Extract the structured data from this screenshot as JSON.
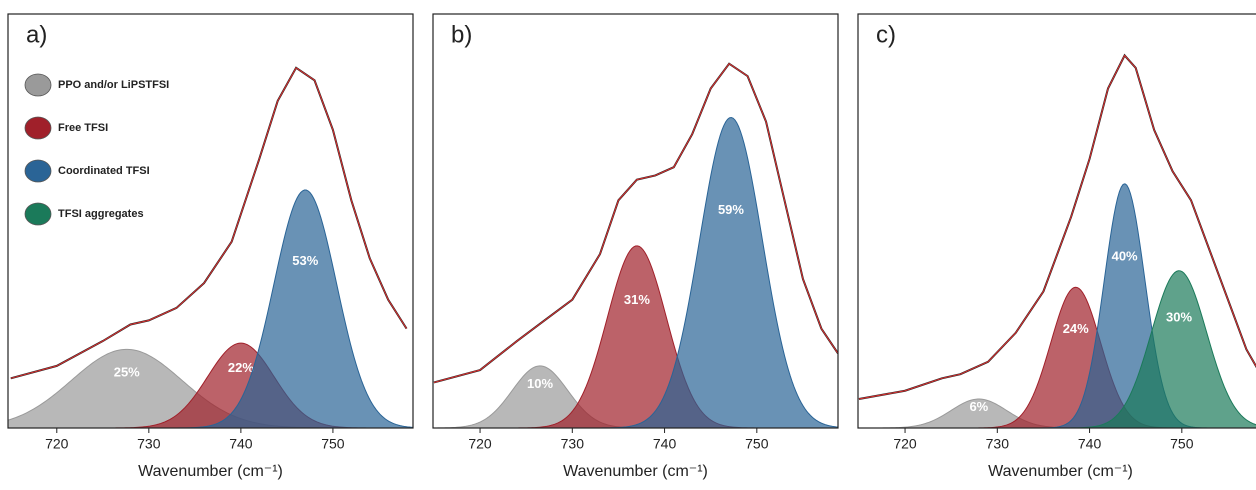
{
  "chart_data": [
    {
      "type": "area",
      "panel_label": "a)",
      "x_label": "Wavenumber (cm⁻¹)",
      "xlim": [
        714.7,
        758.7
      ],
      "xticks": [
        720,
        730,
        740,
        750
      ],
      "ylim": [
        0,
        1
      ],
      "legend": "upper left",
      "series": [
        {
          "name": "PPO and/or LiPSTFSI",
          "color": "#9a9a9a",
          "center": 727.6,
          "width": 6,
          "height": 0.19
        },
        {
          "name": "Free TFSI",
          "color": "#a0202a",
          "center": 740,
          "width": 3.6,
          "height": 0.205
        },
        {
          "name": "Coordinated TFSI",
          "color": "#2a6496",
          "center": 747,
          "width": 3.4,
          "height": 0.575
        },
        {
          "name": "TFSI aggregates",
          "color": "#1b7a5a"
        }
      ],
      "values": [
        25,
        22,
        53
      ],
      "value_labels": [
        "25%",
        "22%",
        "53%"
      ],
      "spectrum": {
        "color": "#e03030",
        "x": [
          715,
          720,
          725,
          728,
          730,
          733,
          736,
          739,
          742,
          744,
          746,
          748,
          750,
          752,
          754,
          756,
          758
        ],
        "values": [
          0.12,
          0.15,
          0.21,
          0.25,
          0.26,
          0.29,
          0.35,
          0.45,
          0.65,
          0.79,
          0.87,
          0.84,
          0.72,
          0.55,
          0.41,
          0.31,
          0.24
        ]
      }
    },
    {
      "type": "area",
      "panel_label": "b)",
      "x_label": "Wavenumber (cm⁻¹)",
      "xlim": [
        714.9,
        758.8
      ],
      "xticks": [
        720,
        730,
        740,
        750
      ],
      "ylim": [
        0,
        1
      ],
      "series": [
        {
          "color": "#9a9a9a",
          "center": 726.5,
          "width": 3,
          "height": 0.15
        },
        {
          "color": "#a0202a",
          "center": 737,
          "width": 3.2,
          "height": 0.44
        },
        {
          "color": "#2a6496",
          "center": 747.2,
          "width": 3.4,
          "height": 0.75
        }
      ],
      "values": [
        10,
        31,
        59
      ],
      "value_labels": [
        "10%",
        "31%",
        "59%"
      ],
      "spectrum": {
        "color": "#e03030",
        "x": [
          715,
          720,
          724,
          727,
          730,
          733,
          735,
          737,
          739,
          741,
          743,
          745,
          747,
          749,
          751,
          753,
          755,
          757,
          758.8
        ],
        "values": [
          0.11,
          0.14,
          0.21,
          0.26,
          0.31,
          0.42,
          0.55,
          0.6,
          0.61,
          0.63,
          0.71,
          0.82,
          0.88,
          0.85,
          0.74,
          0.55,
          0.36,
          0.24,
          0.18
        ]
      }
    },
    {
      "type": "area",
      "panel_label": "c)",
      "x_label": "Wavenumber (cm⁻¹)",
      "xlim": [
        714.9,
        758.8
      ],
      "xticks": [
        720,
        730,
        740,
        750
      ],
      "ylim": [
        0,
        1
      ],
      "series": [
        {
          "color": "#9a9a9a",
          "center": 728,
          "width": 3,
          "height": 0.07
        },
        {
          "color": "#a0202a",
          "center": 738.5,
          "width": 2.7,
          "height": 0.34
        },
        {
          "color": "#2a6496",
          "center": 743.8,
          "width": 2.2,
          "height": 0.59
        },
        {
          "color": "#1b7a5a",
          "center": 749.7,
          "width": 3,
          "height": 0.38
        }
      ],
      "values": [
        6,
        24,
        40,
        30
      ],
      "value_labels": [
        "6%",
        "24%",
        "40%",
        "30%"
      ],
      "spectrum": {
        "color": "#e03030",
        "x": [
          715,
          720,
          724,
          726,
          729,
          732,
          735,
          738,
          740,
          742,
          743.8,
          745,
          747,
          749,
          751,
          753,
          755,
          757,
          758.8
        ],
        "values": [
          0.07,
          0.09,
          0.12,
          0.13,
          0.16,
          0.23,
          0.33,
          0.51,
          0.65,
          0.82,
          0.9,
          0.87,
          0.72,
          0.62,
          0.55,
          0.43,
          0.31,
          0.19,
          0.12
        ]
      }
    }
  ]
}
